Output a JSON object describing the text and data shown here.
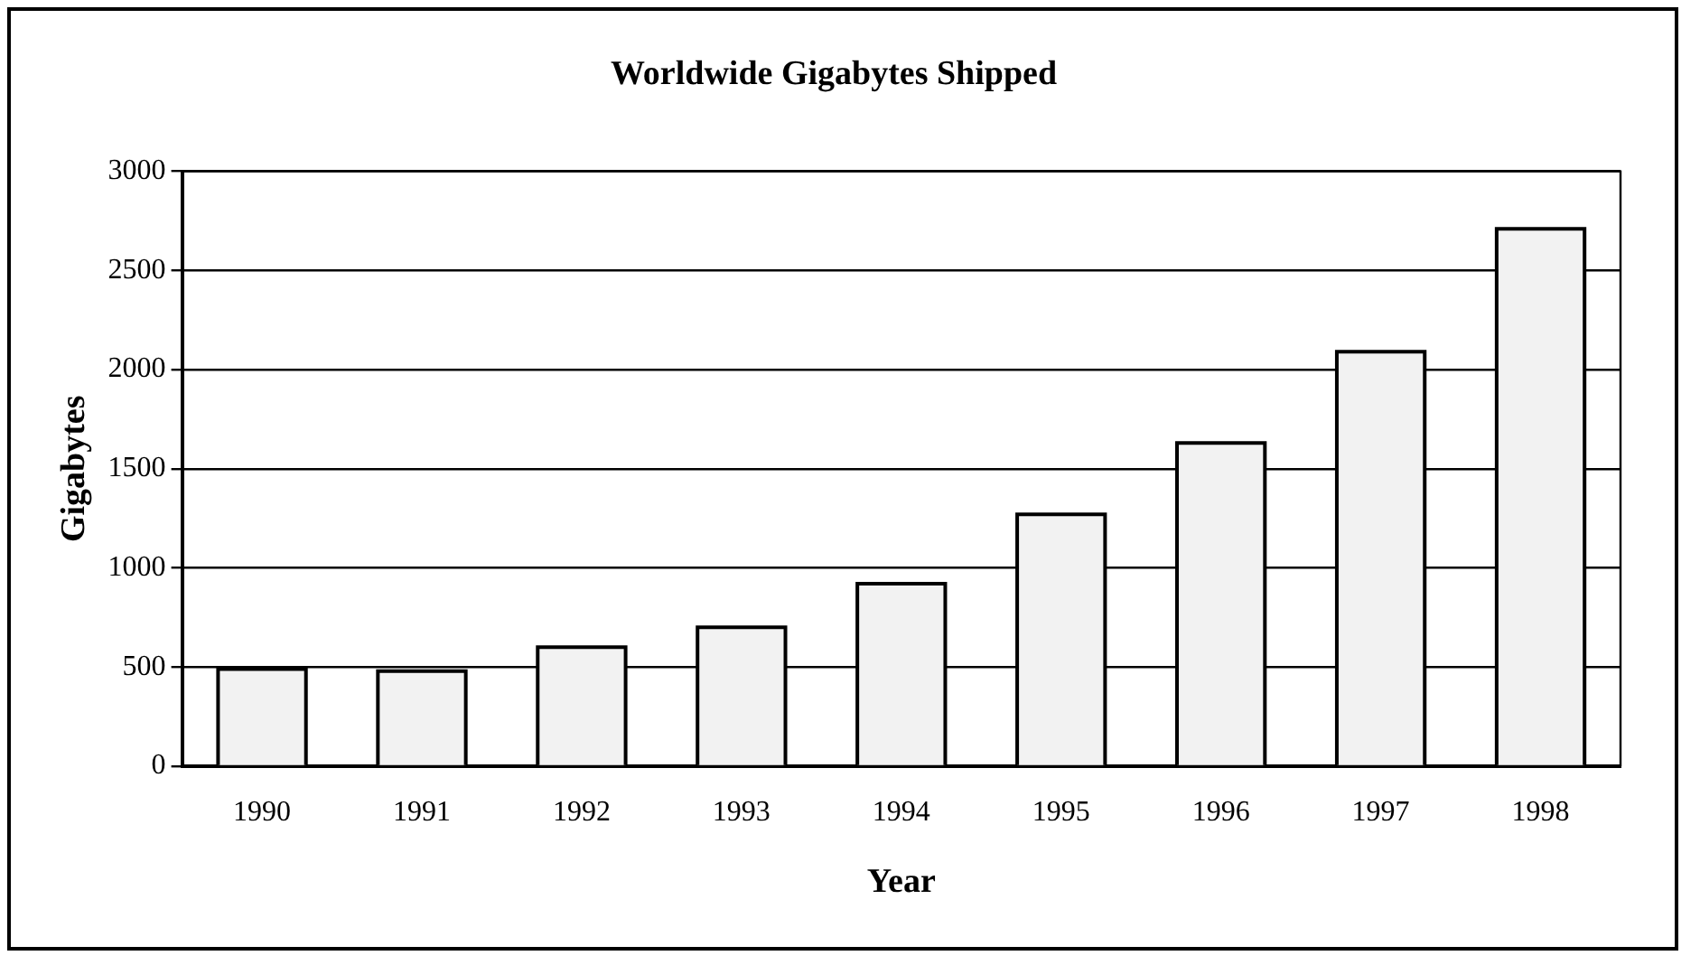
{
  "chart_data": {
    "type": "bar",
    "title": "Worldwide Gigabytes Shipped",
    "xlabel": "Year",
    "ylabel": "Gigabytes",
    "categories": [
      "1990",
      "1991",
      "1992",
      "1993",
      "1994",
      "1995",
      "1996",
      "1997",
      "1998"
    ],
    "values": [
      490,
      480,
      600,
      700,
      920,
      1270,
      1630,
      2090,
      2710
    ],
    "color": "#f2f2f2",
    "ylim": [
      0,
      3000
    ],
    "yticks": [
      0,
      500,
      1000,
      1500,
      2000,
      2500,
      3000
    ],
    "grid": "y"
  }
}
